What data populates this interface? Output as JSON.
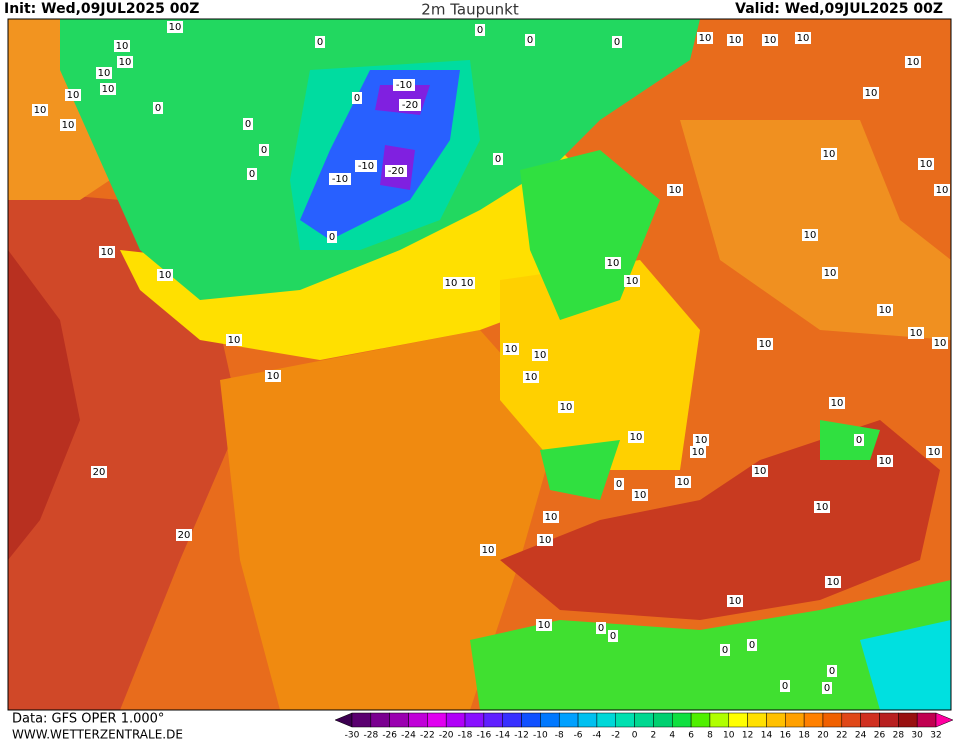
{
  "header": {
    "init": "Init: Wed,09JUL2025 00Z",
    "title": "2m Taupunkt",
    "valid": "Valid: Wed,09JUL2025 00Z"
  },
  "footer": {
    "data": "Data: GFS OPER 1.000°",
    "site": "WWW.WETTERZENTRALE.DE"
  },
  "colorbar": {
    "levels": [
      -30,
      -28,
      -26,
      -24,
      -22,
      -20,
      -18,
      -16,
      -14,
      -12,
      -10,
      -8,
      -6,
      -4,
      -2,
      0,
      2,
      4,
      6,
      8,
      10,
      12,
      14,
      16,
      18,
      20,
      22,
      24,
      26,
      28,
      30,
      32
    ],
    "colors": [
      "#3c0050",
      "#5a0070",
      "#7a0090",
      "#9a00b0",
      "#c000d8",
      "#e000f0",
      "#b000f8",
      "#8810ff",
      "#6020ff",
      "#3830ff",
      "#1050ff",
      "#0078ff",
      "#00a0ff",
      "#00c0f0",
      "#00d8d8",
      "#00e0b0",
      "#00d890",
      "#00d070",
      "#10e040",
      "#50f000",
      "#b0ff00",
      "#ffff00",
      "#ffe000",
      "#ffc000",
      "#ffa000",
      "#ff8000",
      "#f06000",
      "#e04818",
      "#d03020",
      "#b82020",
      "#981010",
      "#c00050",
      "#ff00a0"
    ]
  },
  "contour_labels": [
    10,
    10,
    10,
    10,
    10,
    10,
    10,
    10,
    0,
    0,
    0,
    0,
    0,
    0,
    -10,
    -20,
    -10,
    -10,
    -20,
    0,
    0,
    0,
    0,
    10,
    10,
    10,
    10,
    10,
    10,
    10,
    10,
    10,
    10,
    0,
    10,
    10,
    10,
    10,
    10,
    10,
    10,
    10,
    10,
    10,
    10,
    10,
    10,
    10,
    10,
    10,
    10,
    10,
    10,
    10,
    10,
    10,
    0,
    10,
    10,
    20,
    20,
    10,
    10,
    10,
    10,
    10,
    10,
    10,
    10,
    10,
    0,
    0,
    0,
    0,
    0,
    0,
    0,
    0,
    10
  ]
}
